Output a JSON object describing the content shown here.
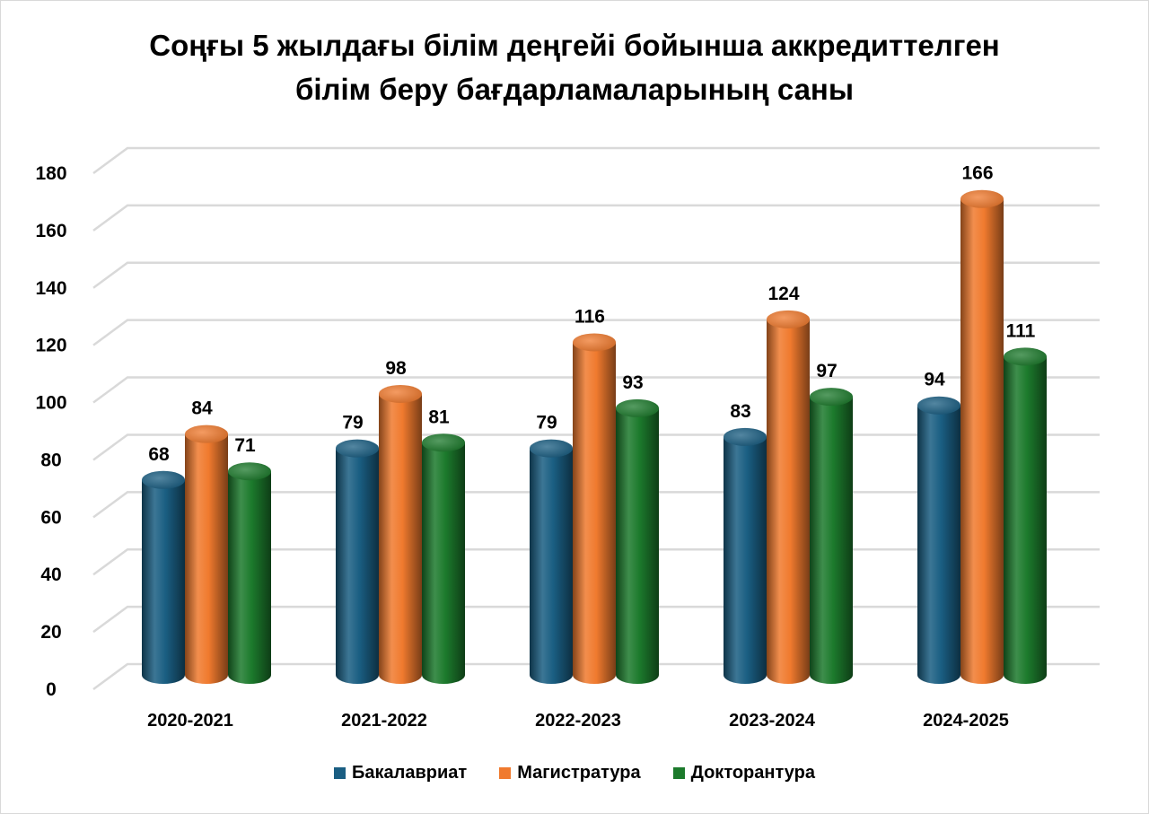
{
  "chart_data": {
    "type": "bar",
    "style": "3d-cylinder",
    "title": "Соңғы 5 жылдағы білім деңгейі бойынша аккредиттелген білім беру бағдарламаларының саны",
    "title_lines": [
      "Соңғы 5 жылдағы білім деңгейі бойынша аккредиттелген",
      "білім беру бағдарламаларының саны"
    ],
    "categories": [
      "2020-2021",
      "2021-2022",
      "2022-2023",
      "2023-2024",
      "2024-2025"
    ],
    "series": [
      {
        "name": "Бакалавриат",
        "color": "#1a5e82",
        "values": [
          68,
          79,
          79,
          83,
          94
        ]
      },
      {
        "name": "Магистратура",
        "color": "#f07a2e",
        "values": [
          84,
          98,
          116,
          124,
          166
        ]
      },
      {
        "name": "Докторантура",
        "color": "#1c7a2c",
        "values": [
          71,
          81,
          93,
          97,
          111
        ]
      }
    ],
    "ylim": [
      0,
      180
    ],
    "yticks": [
      0,
      20,
      40,
      60,
      80,
      100,
      120,
      140,
      160,
      180
    ],
    "grid": true,
    "legend_position": "bottom",
    "data_labels": true
  }
}
